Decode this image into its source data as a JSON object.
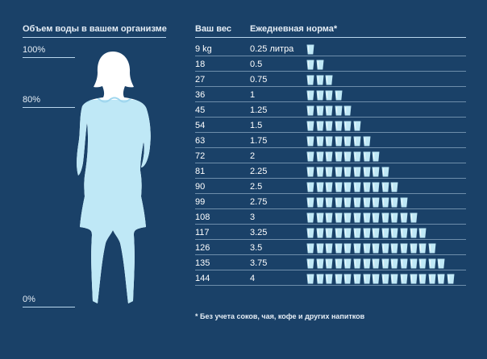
{
  "left_panel": {
    "title": "Объем воды в вашем организме",
    "levels": [
      "100%",
      "80%",
      "0%"
    ]
  },
  "table": {
    "col_weight": "Ваш вес",
    "col_norm": "Ежедневная норма*",
    "rows": [
      {
        "weight": "9 kg",
        "norm": "0.25 литра",
        "glasses": 1
      },
      {
        "weight": "18",
        "norm": "0.5",
        "glasses": 2
      },
      {
        "weight": "27",
        "norm": "0.75",
        "glasses": 3
      },
      {
        "weight": "36",
        "norm": "1",
        "glasses": 4
      },
      {
        "weight": "45",
        "norm": "1.25",
        "glasses": 5
      },
      {
        "weight": "54",
        "norm": "1.5",
        "glasses": 6
      },
      {
        "weight": "63",
        "norm": "1.75",
        "glasses": 7
      },
      {
        "weight": "72",
        "norm": "2",
        "glasses": 8
      },
      {
        "weight": "81",
        "norm": "2.25",
        "glasses": 9
      },
      {
        "weight": "90",
        "norm": "2.5",
        "glasses": 10
      },
      {
        "weight": "99",
        "norm": "2.75",
        "glasses": 11
      },
      {
        "weight": "108",
        "norm": "3",
        "glasses": 12
      },
      {
        "weight": "117",
        "norm": "3.25",
        "glasses": 13
      },
      {
        "weight": "126",
        "norm": "3.5",
        "glasses": 14
      },
      {
        "weight": "135",
        "norm": "3.75",
        "glasses": 15
      },
      {
        "weight": "144",
        "norm": "4",
        "glasses": 16
      }
    ]
  },
  "footnote": "* Без учета соков, чая, кофе и других напитков",
  "colors": {
    "background": "#1a4168",
    "water": "#bfe8f6",
    "silhouette": "#ffffff"
  }
}
